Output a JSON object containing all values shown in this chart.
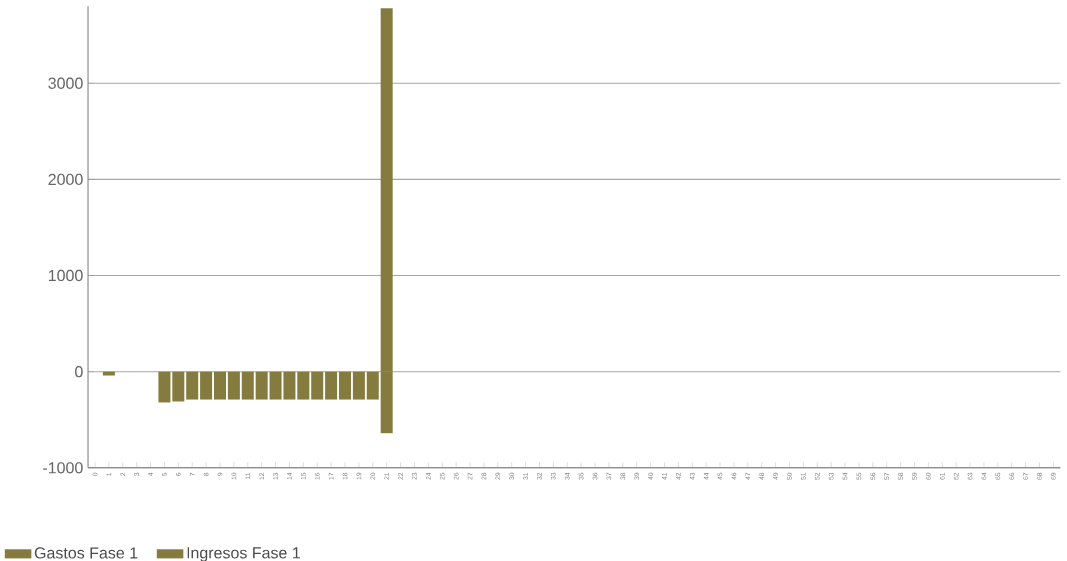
{
  "chart_data": {
    "type": "bar",
    "categories": [
      "0",
      "1",
      "2",
      "3",
      "4",
      "5",
      "6",
      "7",
      "8",
      "9",
      "10",
      "11",
      "12",
      "13",
      "14",
      "15",
      "16",
      "17",
      "18",
      "19",
      "20",
      "21",
      "22",
      "23",
      "24",
      "25",
      "26",
      "27",
      "28",
      "29",
      "30",
      "31",
      "32",
      "33",
      "34",
      "35",
      "36",
      "37",
      "38",
      "39",
      "40",
      "41",
      "42",
      "43",
      "44",
      "45",
      "46",
      "47",
      "48",
      "49",
      "50",
      "51",
      "52",
      "53",
      "54",
      "55",
      "56",
      "57",
      "58",
      "59",
      "60",
      "61",
      "62",
      "63",
      "64",
      "65",
      "66",
      "67",
      "68",
      "69"
    ],
    "series": [
      {
        "name": "Gastos Fase 1",
        "color": "#857b3e",
        "values": [
          null,
          -40,
          null,
          null,
          null,
          -320,
          -310,
          -290,
          -290,
          -290,
          -290,
          -290,
          -290,
          -290,
          -290,
          -290,
          -290,
          -290,
          -290,
          -290,
          -290,
          -640,
          null,
          null,
          null,
          null,
          null,
          null,
          null,
          null,
          null,
          null,
          null,
          null,
          null,
          null,
          null,
          null,
          null,
          null,
          null,
          null,
          null,
          null,
          null,
          null,
          null,
          null,
          null,
          null,
          null,
          null,
          null,
          null,
          null,
          null,
          null,
          null,
          null,
          null,
          null,
          null,
          null,
          null,
          null,
          null,
          null,
          null,
          null,
          null
        ]
      },
      {
        "name": "Ingresos Fase 1",
        "color": "#857b3e",
        "values": [
          null,
          null,
          null,
          null,
          null,
          null,
          null,
          null,
          null,
          null,
          null,
          null,
          null,
          null,
          null,
          null,
          null,
          null,
          null,
          null,
          null,
          3780,
          null,
          null,
          null,
          null,
          null,
          null,
          null,
          null,
          null,
          null,
          null,
          null,
          null,
          null,
          null,
          null,
          null,
          null,
          null,
          null,
          null,
          null,
          null,
          null,
          null,
          null,
          null,
          null,
          null,
          null,
          null,
          null,
          null,
          null,
          null,
          null,
          null,
          null,
          null,
          null,
          null,
          null,
          null,
          null,
          null,
          null,
          null,
          null
        ]
      }
    ],
    "ylim": [
      -1000,
      3800
    ],
    "yticks": [
      -1000,
      0,
      1000,
      2000,
      3000
    ],
    "grid": "y",
    "legend": "bottom left"
  }
}
